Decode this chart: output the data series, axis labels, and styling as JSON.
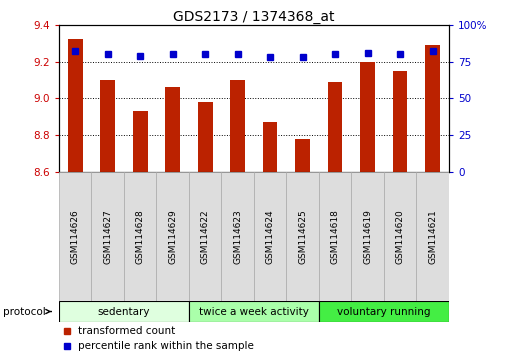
{
  "title": "GDS2173 / 1374368_at",
  "samples": [
    "GSM114626",
    "GSM114627",
    "GSM114628",
    "GSM114629",
    "GSM114622",
    "GSM114623",
    "GSM114624",
    "GSM114625",
    "GSM114618",
    "GSM114619",
    "GSM114620",
    "GSM114621"
  ],
  "transformed_count": [
    9.32,
    9.1,
    8.93,
    9.06,
    8.98,
    9.1,
    8.87,
    8.78,
    9.09,
    9.2,
    9.15,
    9.29
  ],
  "percentile_rank": [
    82,
    80,
    79,
    80,
    80,
    80,
    78,
    78,
    80,
    81,
    80,
    82
  ],
  "ylim_left": [
    8.6,
    9.4
  ],
  "ylim_right": [
    0,
    100
  ],
  "yticks_left": [
    8.6,
    8.8,
    9.0,
    9.2,
    9.4
  ],
  "yticks_right": [
    0,
    25,
    50,
    75,
    100
  ],
  "bar_color": "#bb2200",
  "dot_color": "#0000cc",
  "bar_bottom": 8.6,
  "groups": [
    {
      "label": "sedentary",
      "start": 0,
      "end": 4,
      "color": "#dfffdf"
    },
    {
      "label": "twice a week activity",
      "start": 4,
      "end": 8,
      "color": "#aaffaa"
    },
    {
      "label": "voluntary running",
      "start": 8,
      "end": 12,
      "color": "#44ee44"
    }
  ],
  "protocol_label": "protocol",
  "legend_items": [
    {
      "label": "transformed count",
      "color": "#bb2200"
    },
    {
      "label": "percentile rank within the sample",
      "color": "#0000cc"
    }
  ],
  "left_tick_color": "#cc0000",
  "right_tick_color": "#0000cc",
  "grid_linestyle": "dotted",
  "sample_box_color": "#dddddd",
  "sample_box_edge": "#aaaaaa"
}
